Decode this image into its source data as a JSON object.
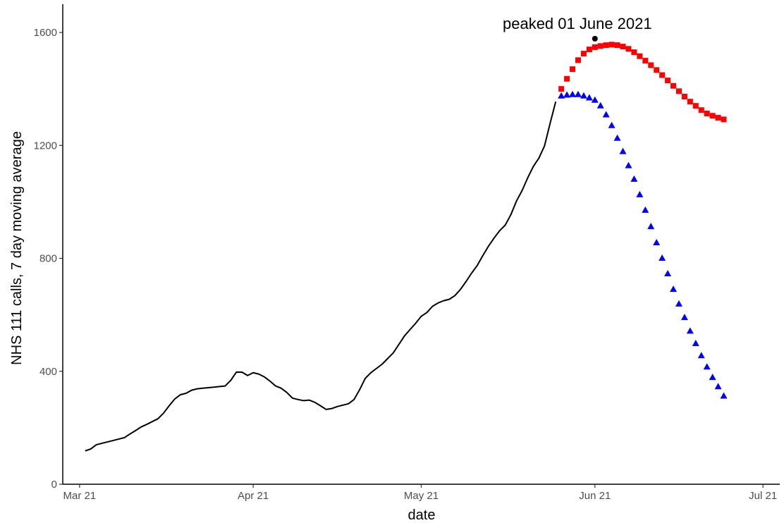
{
  "chart_data": {
    "type": "line",
    "xlabel": "date",
    "ylabel": "NHS 111 calls, 7 day moving average",
    "xlim": [
      "2021-02-26",
      "2021-07-04"
    ],
    "ylim": [
      0,
      1700
    ],
    "x_ticks": [
      {
        "date": "2021-03-01",
        "label": "Mar 21"
      },
      {
        "date": "2021-04-01",
        "label": "Apr 21"
      },
      {
        "date": "2021-05-01",
        "label": "May 21"
      },
      {
        "date": "2021-06-01",
        "label": "Jun 21"
      },
      {
        "date": "2021-07-01",
        "label": "Jul 21"
      }
    ],
    "y_ticks": [
      {
        "value": 0,
        "label": "0"
      },
      {
        "value": 400,
        "label": "400"
      },
      {
        "value": 800,
        "label": "800"
      },
      {
        "value": 1200,
        "label": "1200"
      },
      {
        "value": 1600,
        "label": "1600"
      }
    ],
    "grid": false,
    "series": [
      {
        "style": "line",
        "color": "#000000",
        "points": [
          [
            "2021-03-02",
            118
          ],
          [
            "2021-03-03",
            125
          ],
          [
            "2021-03-04",
            140
          ],
          [
            "2021-03-05",
            145
          ],
          [
            "2021-03-06",
            150
          ],
          [
            "2021-03-07",
            155
          ],
          [
            "2021-03-08",
            160
          ],
          [
            "2021-03-09",
            165
          ],
          [
            "2021-03-10",
            178
          ],
          [
            "2021-03-11",
            190
          ],
          [
            "2021-03-12",
            203
          ],
          [
            "2021-03-13",
            212
          ],
          [
            "2021-03-14",
            222
          ],
          [
            "2021-03-15",
            232
          ],
          [
            "2021-03-16",
            252
          ],
          [
            "2021-03-17",
            278
          ],
          [
            "2021-03-18",
            302
          ],
          [
            "2021-03-19",
            317
          ],
          [
            "2021-03-20",
            322
          ],
          [
            "2021-03-21",
            333
          ],
          [
            "2021-03-22",
            338
          ],
          [
            "2021-03-23",
            340
          ],
          [
            "2021-03-24",
            342
          ],
          [
            "2021-03-25",
            344
          ],
          [
            "2021-03-26",
            346
          ],
          [
            "2021-03-27",
            348
          ],
          [
            "2021-03-28",
            368
          ],
          [
            "2021-03-29",
            397
          ],
          [
            "2021-03-30",
            397
          ],
          [
            "2021-03-31",
            385
          ],
          [
            "2021-04-01",
            395
          ],
          [
            "2021-04-02",
            390
          ],
          [
            "2021-04-03",
            380
          ],
          [
            "2021-04-04",
            365
          ],
          [
            "2021-04-05",
            348
          ],
          [
            "2021-04-06",
            340
          ],
          [
            "2021-04-07",
            325
          ],
          [
            "2021-04-08",
            305
          ],
          [
            "2021-04-09",
            300
          ],
          [
            "2021-04-10",
            296
          ],
          [
            "2021-04-11",
            298
          ],
          [
            "2021-04-12",
            290
          ],
          [
            "2021-04-13",
            278
          ],
          [
            "2021-04-14",
            265
          ],
          [
            "2021-04-15",
            268
          ],
          [
            "2021-04-16",
            275
          ],
          [
            "2021-04-17",
            280
          ],
          [
            "2021-04-18",
            285
          ],
          [
            "2021-04-19",
            300
          ],
          [
            "2021-04-20",
            335
          ],
          [
            "2021-04-21",
            375
          ],
          [
            "2021-04-22",
            395
          ],
          [
            "2021-04-23",
            410
          ],
          [
            "2021-04-24",
            425
          ],
          [
            "2021-04-25",
            445
          ],
          [
            "2021-04-26",
            465
          ],
          [
            "2021-04-27",
            495
          ],
          [
            "2021-04-28",
            525
          ],
          [
            "2021-04-29",
            548
          ],
          [
            "2021-04-30",
            570
          ],
          [
            "2021-05-01",
            595
          ],
          [
            "2021-05-02",
            608
          ],
          [
            "2021-05-03",
            630
          ],
          [
            "2021-05-04",
            642
          ],
          [
            "2021-05-05",
            650
          ],
          [
            "2021-05-06",
            655
          ],
          [
            "2021-05-07",
            668
          ],
          [
            "2021-05-08",
            690
          ],
          [
            "2021-05-09",
            718
          ],
          [
            "2021-05-10",
            748
          ],
          [
            "2021-05-11",
            775
          ],
          [
            "2021-05-12",
            810
          ],
          [
            "2021-05-13",
            843
          ],
          [
            "2021-05-14",
            872
          ],
          [
            "2021-05-15",
            898
          ],
          [
            "2021-05-16",
            918
          ],
          [
            "2021-05-17",
            955
          ],
          [
            "2021-05-18",
            1003
          ],
          [
            "2021-05-19",
            1040
          ],
          [
            "2021-05-20",
            1085
          ],
          [
            "2021-05-21",
            1125
          ],
          [
            "2021-05-22",
            1155
          ],
          [
            "2021-05-23",
            1198
          ],
          [
            "2021-05-24",
            1278
          ],
          [
            "2021-05-25",
            1355
          ]
        ]
      },
      {
        "style": "points",
        "marker": "square",
        "color": "#ff0000",
        "points": [
          [
            "2021-05-26",
            1400
          ],
          [
            "2021-05-27",
            1436
          ],
          [
            "2021-05-28",
            1470
          ],
          [
            "2021-05-29",
            1502
          ],
          [
            "2021-05-30",
            1525
          ],
          [
            "2021-05-31",
            1540
          ],
          [
            "2021-06-01",
            1548
          ],
          [
            "2021-06-02",
            1552
          ],
          [
            "2021-06-03",
            1555
          ],
          [
            "2021-06-04",
            1557
          ],
          [
            "2021-06-05",
            1555
          ],
          [
            "2021-06-06",
            1550
          ],
          [
            "2021-06-07",
            1542
          ],
          [
            "2021-06-08",
            1530
          ],
          [
            "2021-06-09",
            1516
          ],
          [
            "2021-06-10",
            1500
          ],
          [
            "2021-06-11",
            1484
          ],
          [
            "2021-06-12",
            1467
          ],
          [
            "2021-06-13",
            1449
          ],
          [
            "2021-06-14",
            1430
          ],
          [
            "2021-06-15",
            1411
          ],
          [
            "2021-06-16",
            1392
          ],
          [
            "2021-06-17",
            1373
          ],
          [
            "2021-06-18",
            1355
          ],
          [
            "2021-06-19",
            1340
          ],
          [
            "2021-06-20",
            1325
          ],
          [
            "2021-06-21",
            1313
          ],
          [
            "2021-06-22",
            1305
          ],
          [
            "2021-06-23",
            1298
          ],
          [
            "2021-06-24",
            1292
          ]
        ]
      },
      {
        "style": "points",
        "marker": "triangle",
        "color": "#0000ff",
        "points": [
          [
            "2021-05-26",
            1375
          ],
          [
            "2021-05-27",
            1378
          ],
          [
            "2021-05-28",
            1380
          ],
          [
            "2021-05-29",
            1380
          ],
          [
            "2021-05-30",
            1375
          ],
          [
            "2021-05-31",
            1368
          ],
          [
            "2021-06-01",
            1360
          ],
          [
            "2021-06-02",
            1340
          ],
          [
            "2021-06-03",
            1308
          ],
          [
            "2021-06-04",
            1270
          ],
          [
            "2021-06-05",
            1225
          ],
          [
            "2021-06-06",
            1178
          ],
          [
            "2021-06-07",
            1128
          ],
          [
            "2021-06-08",
            1080
          ],
          [
            "2021-06-09",
            1025
          ],
          [
            "2021-06-10",
            970
          ],
          [
            "2021-06-11",
            912
          ],
          [
            "2021-06-12",
            855
          ],
          [
            "2021-06-13",
            800
          ],
          [
            "2021-06-14",
            745
          ],
          [
            "2021-06-15",
            690
          ],
          [
            "2021-06-16",
            638
          ],
          [
            "2021-06-17",
            590
          ],
          [
            "2021-06-18",
            542
          ],
          [
            "2021-06-19",
            498
          ],
          [
            "2021-06-20",
            455
          ],
          [
            "2021-06-21",
            415
          ],
          [
            "2021-06-22",
            378
          ],
          [
            "2021-06-23",
            345
          ],
          [
            "2021-06-24",
            312
          ]
        ]
      }
    ],
    "annotations": [
      {
        "text": "peaked 01 June 2021",
        "point": [
          "2021-06-01",
          1578
        ],
        "marker": "circle",
        "color": "#000000"
      }
    ]
  }
}
